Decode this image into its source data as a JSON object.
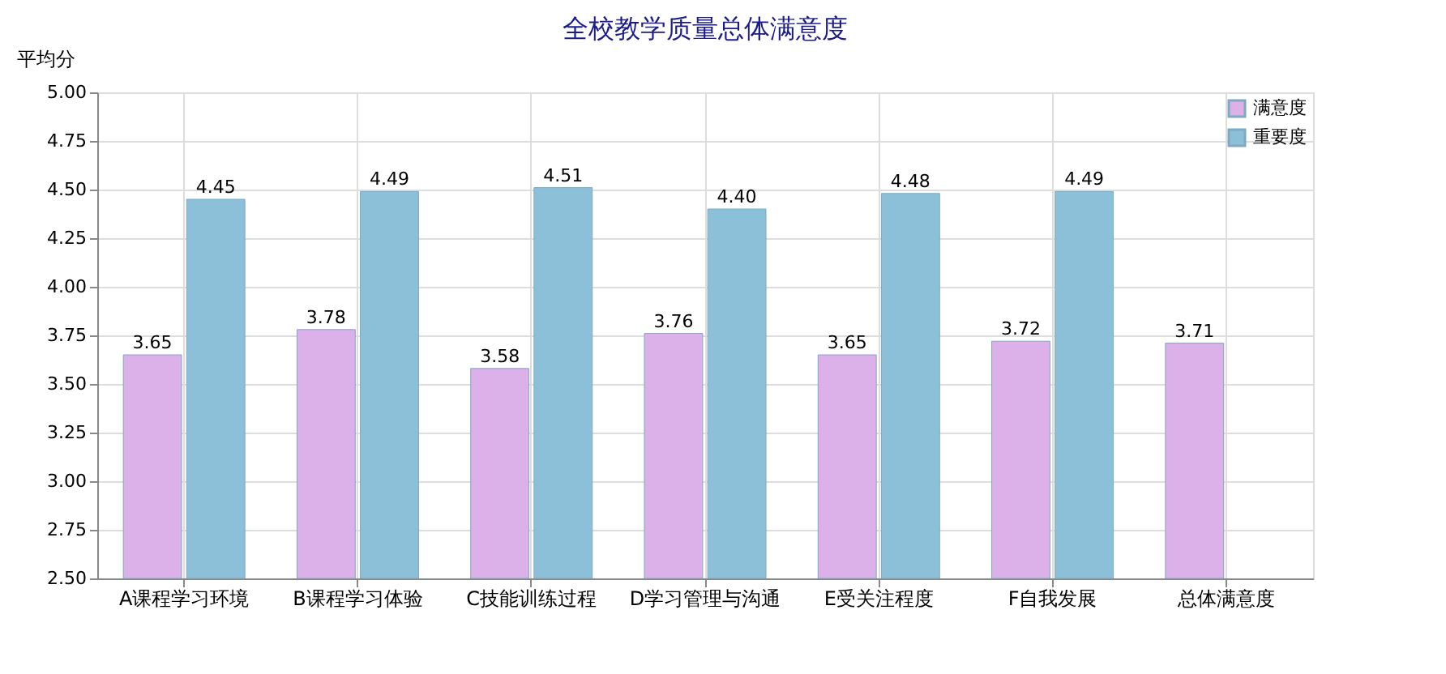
{
  "chart_data": {
    "type": "bar",
    "title": "全校教学质量总体满意度",
    "ylabel": "平均分",
    "categories": [
      "A课程学习环境",
      "B课程学习体验",
      "C技能训练过程",
      "D学习管理与沟通",
      "E受关注程度",
      "F自我发展",
      "总体满意度"
    ],
    "series": [
      {
        "name": "满意度",
        "color": "#dcb0e8",
        "values": [
          3.65,
          3.78,
          3.58,
          3.76,
          3.65,
          3.72,
          3.71
        ],
        "value_labels": [
          "3.65",
          "3.78",
          "3.58",
          "3.76",
          "3.65",
          "3.72",
          "3.71"
        ]
      },
      {
        "name": "重要度",
        "color": "#8cc0d8",
        "values": [
          4.45,
          4.49,
          4.51,
          4.4,
          4.48,
          4.49,
          null
        ],
        "value_labels": [
          "4.45",
          "4.49",
          "4.51",
          "4.40",
          "4.48",
          "4.49",
          null
        ]
      }
    ],
    "ylim": [
      2.5,
      5.0
    ],
    "yticks": [
      {
        "value": 2.5,
        "label": "2.50"
      },
      {
        "value": 2.75,
        "label": "2.75"
      },
      {
        "value": 3.0,
        "label": "3.00"
      },
      {
        "value": 3.25,
        "label": "3.25"
      },
      {
        "value": 3.5,
        "label": "3.50"
      },
      {
        "value": 3.75,
        "label": "3.75"
      },
      {
        "value": 4.0,
        "label": "4.00"
      },
      {
        "value": 4.25,
        "label": "4.25"
      },
      {
        "value": 4.5,
        "label": "4.50"
      },
      {
        "value": 4.75,
        "label": "4.75"
      },
      {
        "value": 5.0,
        "label": "5.00"
      }
    ],
    "grid": true,
    "legend": "top right"
  }
}
